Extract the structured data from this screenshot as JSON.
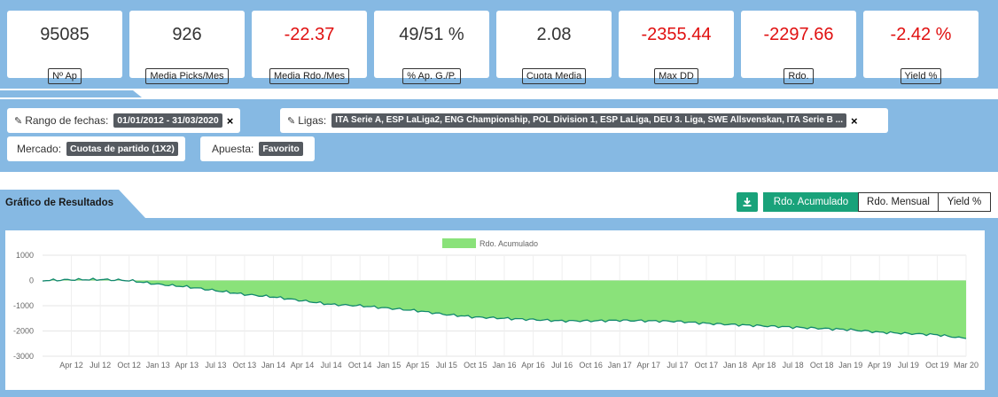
{
  "stats": [
    {
      "value": "95085",
      "label": "Nº Ap",
      "negative": false
    },
    {
      "value": "926",
      "label": "Media Picks/Mes",
      "negative": false
    },
    {
      "value": "-22.37",
      "label": "Media Rdo./Mes",
      "negative": true
    },
    {
      "value": "49/51 %",
      "label": "% Ap. G./P.",
      "negative": false
    },
    {
      "value": "2.08",
      "label": "Cuota Media",
      "negative": false
    },
    {
      "value": "-2355.44",
      "label": "Max DD",
      "negative": true
    },
    {
      "value": "-2297.66",
      "label": "Rdo.",
      "negative": true
    },
    {
      "value": "-2.42 %",
      "label": "Yield %",
      "negative": true
    }
  ],
  "filters": {
    "dates": {
      "label": "Rango de fechas:",
      "value": "01/01/2012 - 31/03/2020"
    },
    "leagues": {
      "label": "Ligas:",
      "value": "ITA Serie A, ESP LaLiga2, ENG Championship, POL Division 1, ESP LaLiga, DEU 3. Liga, SWE Allsvenskan, ITA Serie B ..."
    },
    "market": {
      "label": "Mercado:",
      "value": "Cuotas de partido (1X2)"
    },
    "bet": {
      "label": "Apuesta:",
      "value": "Favorito"
    },
    "remove_glyph": "×"
  },
  "chart_section": {
    "title": "Gráfico de Resultados",
    "tabs": [
      "Rdo. Acumulado",
      "Rdo. Mensual",
      "Yield %"
    ],
    "active_tab": "Rdo. Acumulado",
    "download_icon": "download-icon"
  },
  "colors": {
    "band": "#86b9e3",
    "accent": "#19a27a",
    "area": "#8ae27a",
    "line": "#12896e",
    "negative": "#e01010"
  },
  "chart_data": {
    "type": "area",
    "legend": "Rdo. Acumulado",
    "legend_position": "top-center",
    "grid": true,
    "ylim": [
      -3000,
      1000
    ],
    "yticks": [
      1000,
      0,
      -1000,
      -2000,
      -3000
    ],
    "xticks": [
      "Apr 12",
      "Jul 12",
      "Oct 12",
      "Jan 13",
      "Apr 13",
      "Jul 13",
      "Oct 13",
      "Jan 14",
      "Apr 14",
      "Jul 14",
      "Oct 14",
      "Jan 15",
      "Apr 15",
      "Jul 15",
      "Oct 15",
      "Jan 16",
      "Apr 16",
      "Jul 16",
      "Oct 16",
      "Jan 17",
      "Apr 17",
      "Jul 17",
      "Oct 17",
      "Jan 18",
      "Apr 18",
      "Jul 18",
      "Oct 18",
      "Jan 19",
      "Apr 19",
      "Jul 19",
      "Oct 19",
      "Mar 20"
    ],
    "series": [
      {
        "name": "Rdo. Acumulado",
        "x": [
          "Jan 12",
          "Apr 12",
          "Jul 12",
          "Oct 12",
          "Jan 13",
          "Apr 13",
          "Jul 13",
          "Oct 13",
          "Jan 14",
          "Apr 14",
          "Jul 14",
          "Oct 14",
          "Jan 15",
          "Apr 15",
          "Jul 15",
          "Oct 15",
          "Jan 16",
          "Apr 16",
          "Jul 16",
          "Oct 16",
          "Jan 17",
          "Apr 17",
          "Jul 17",
          "Oct 17",
          "Jan 18",
          "Apr 18",
          "Jul 18",
          "Oct 18",
          "Jan 19",
          "Apr 19",
          "Jul 19",
          "Oct 19",
          "Mar 20"
        ],
        "values": [
          0,
          30,
          40,
          0,
          -150,
          -250,
          -400,
          -550,
          -650,
          -800,
          -950,
          -1000,
          -1100,
          -1200,
          -1350,
          -1450,
          -1500,
          -1550,
          -1600,
          -1600,
          -1580,
          -1600,
          -1620,
          -1700,
          -1750,
          -1800,
          -1850,
          -1900,
          -1950,
          -2050,
          -2100,
          -2150,
          -2300
        ]
      }
    ]
  }
}
